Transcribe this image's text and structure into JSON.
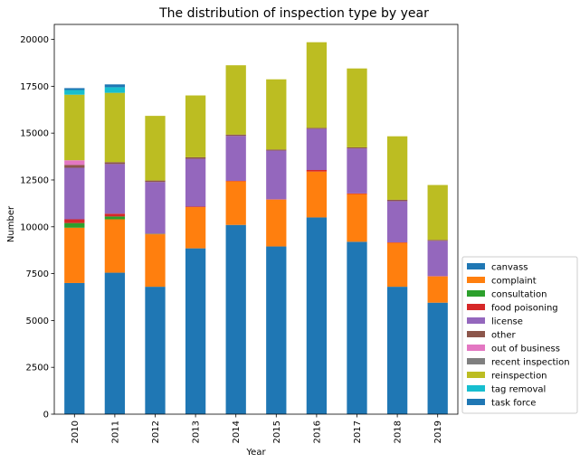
{
  "chart_data": {
    "type": "bar",
    "stacked": true,
    "title": "The distribution of inspection type by year",
    "xlabel": "Year",
    "ylabel": "Number",
    "ylim": [
      0,
      20800
    ],
    "yticks": [
      0,
      2500,
      5000,
      7500,
      10000,
      12500,
      15000,
      17500,
      20000
    ],
    "categories": [
      "2010",
      "2011",
      "2012",
      "2013",
      "2014",
      "2015",
      "2016",
      "2017",
      "2018",
      "2019"
    ],
    "legend_position": "bottom-right outside",
    "series": [
      {
        "name": "canvass",
        "color": "#1f77b4",
        "values": [
          7000,
          7550,
          6800,
          8850,
          10100,
          8950,
          10500,
          9200,
          6800,
          5950
        ]
      },
      {
        "name": "complaint",
        "color": "#ff7f0e",
        "values": [
          2950,
          2850,
          2800,
          2200,
          2330,
          2500,
          2450,
          2550,
          2350,
          1400
        ]
      },
      {
        "name": "consultation",
        "color": "#2ca02c",
        "values": [
          250,
          150,
          20,
          0,
          0,
          0,
          0,
          0,
          0,
          0
        ]
      },
      {
        "name": "food poisoning",
        "color": "#d62728",
        "values": [
          200,
          150,
          20,
          30,
          20,
          20,
          80,
          30,
          20,
          20
        ]
      },
      {
        "name": "license",
        "color": "#9467bd",
        "values": [
          2750,
          2650,
          2750,
          2550,
          2400,
          2600,
          2200,
          2400,
          2200,
          1880
        ]
      },
      {
        "name": "other",
        "color": "#8c564b",
        "values": [
          150,
          100,
          80,
          80,
          70,
          50,
          50,
          60,
          70,
          50
        ]
      },
      {
        "name": "out of business",
        "color": "#e377c2",
        "values": [
          250,
          0,
          0,
          0,
          0,
          0,
          0,
          0,
          0,
          0
        ]
      },
      {
        "name": "recent inspection",
        "color": "#7f7f7f",
        "values": [
          0,
          0,
          0,
          0,
          0,
          0,
          0,
          0,
          0,
          0
        ]
      },
      {
        "name": "reinspection",
        "color": "#bcbd22",
        "values": [
          3500,
          3700,
          3450,
          3300,
          3700,
          3750,
          4570,
          4210,
          3390,
          2930
        ]
      },
      {
        "name": "tag removal",
        "color": "#17becf",
        "values": [
          250,
          300,
          0,
          0,
          0,
          0,
          0,
          0,
          0,
          0
        ]
      },
      {
        "name": "task force",
        "color": "#1f77b4",
        "values": [
          100,
          150,
          0,
          0,
          0,
          0,
          0,
          0,
          0,
          0
        ]
      }
    ]
  }
}
